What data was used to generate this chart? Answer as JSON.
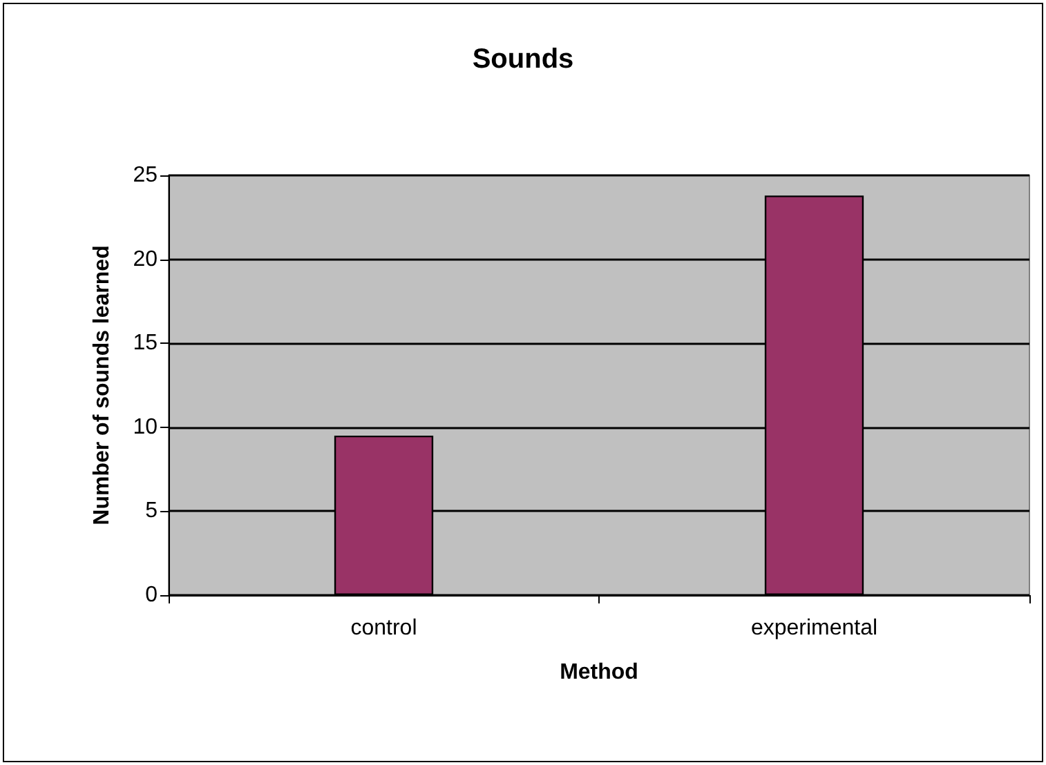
{
  "chart_data": {
    "type": "bar",
    "title": "Sounds",
    "xlabel": "Method",
    "ylabel": "Number of sounds learned",
    "categories": [
      "control",
      "experimental"
    ],
    "values": [
      9.5,
      23.8
    ],
    "color": "#993366",
    "ylim": [
      0,
      25
    ],
    "yticks": [
      0,
      5,
      10,
      15,
      20,
      25
    ],
    "grid": "y"
  }
}
